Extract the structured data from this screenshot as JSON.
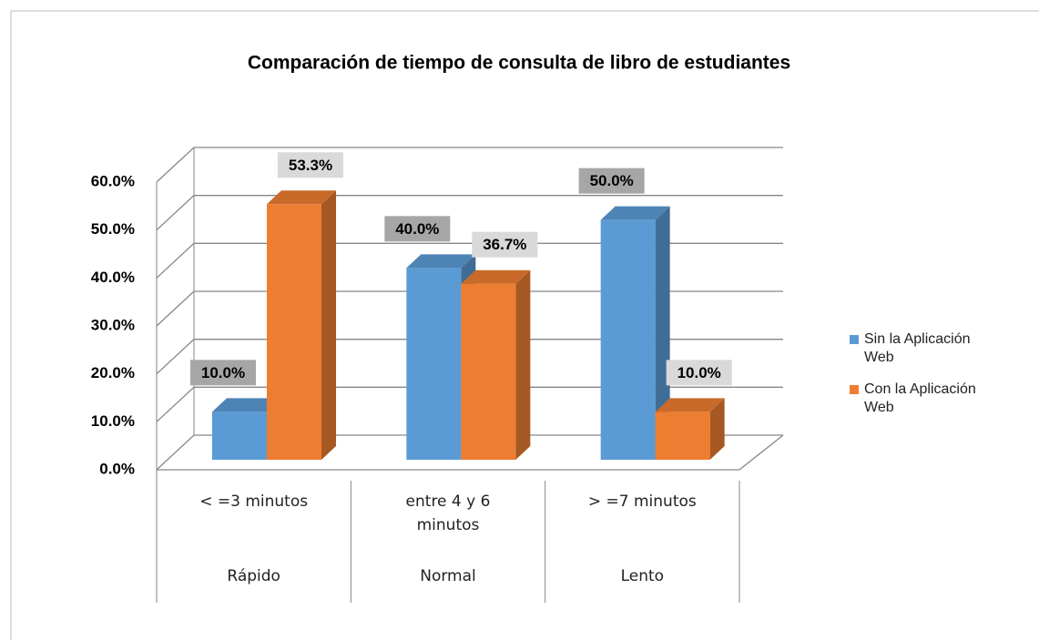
{
  "chart_data": {
    "type": "bar3d",
    "title": "Comparación de tiempo de consulta de libro de estudiantes",
    "categories": [
      "< =3 minutos",
      "entre 4 y 6 minutos",
      "> =7 minutos"
    ],
    "groups": [
      "Rápido",
      "Normal",
      "Lento"
    ],
    "series": [
      {
        "name": "Sin la Aplicación Web",
        "color": "#5b9bd5",
        "values": [
          10,
          40,
          50
        ],
        "value_labels": [
          "10.0%",
          "40.0%",
          "50.0%"
        ]
      },
      {
        "name": "Con la Aplicación Web",
        "color": "#ed7d31",
        "values": [
          53.3,
          36.7,
          10
        ],
        "value_labels": [
          "53.3%",
          "36.7%",
          "10.0%"
        ]
      }
    ],
    "ylim": [
      0,
      60
    ],
    "yticks": [
      {
        "value": 0,
        "label": "0.0%"
      },
      {
        "value": 10,
        "label": "10.0%"
      },
      {
        "value": 20,
        "label": "20.0%"
      },
      {
        "value": 30,
        "label": "30.0%"
      },
      {
        "value": 40,
        "label": "40.0%"
      },
      {
        "value": 50,
        "label": "50.0%"
      },
      {
        "value": 60,
        "label": "60.0%"
      }
    ],
    "grid": true,
    "legend": "right"
  }
}
